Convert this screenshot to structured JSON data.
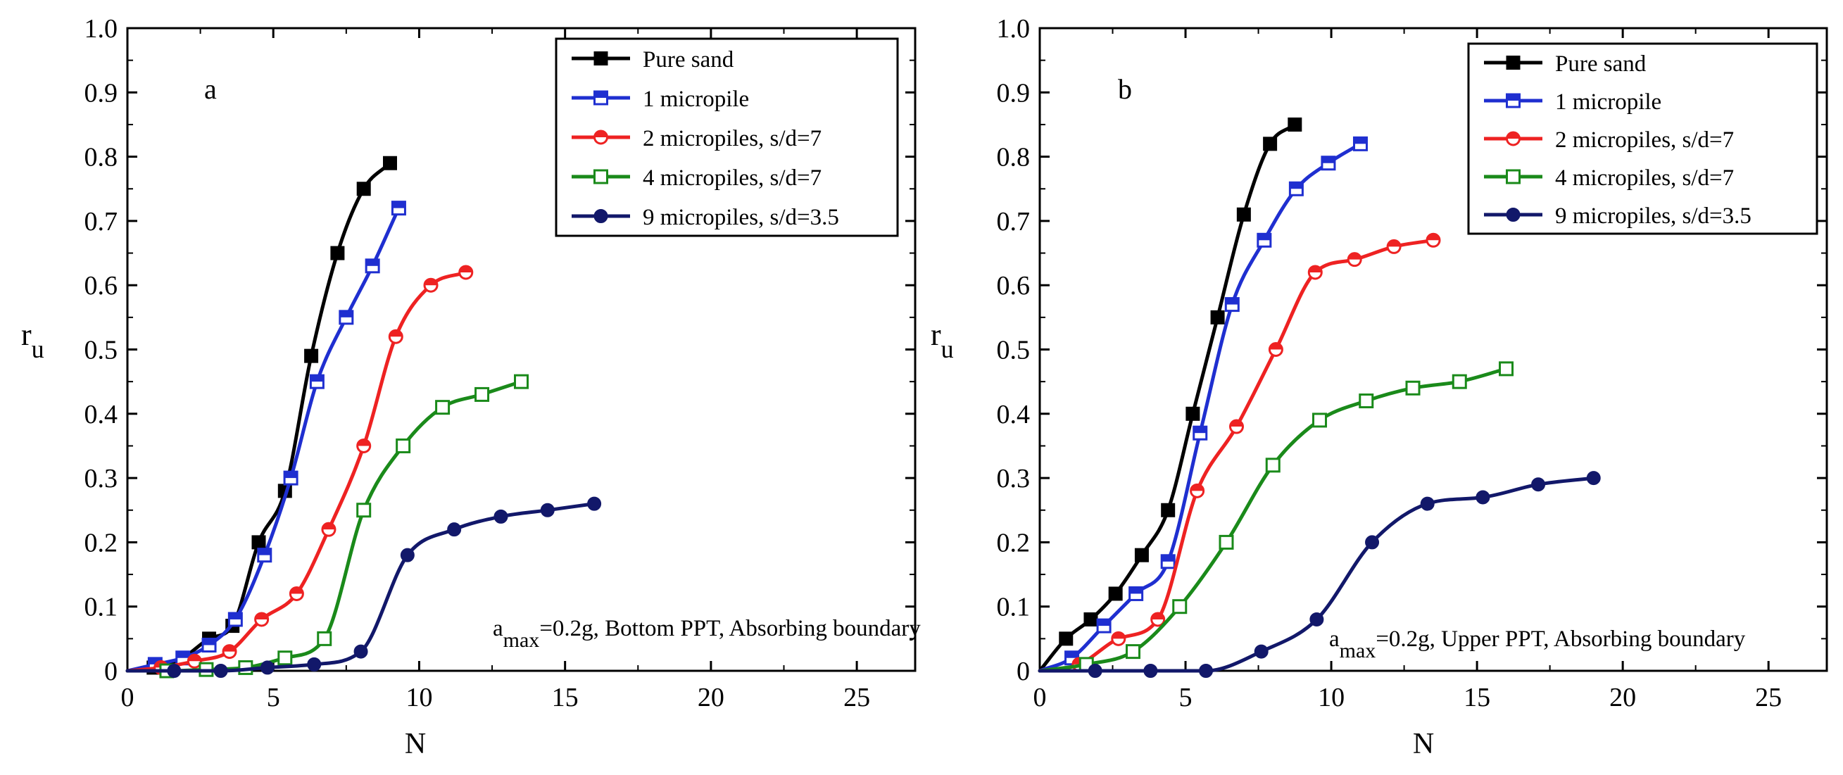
{
  "chart_data": [
    {
      "type": "line",
      "panel_label": "a",
      "xlabel": "N",
      "ylabel_main": "r",
      "ylabel_sub": "u",
      "xlim": [
        0,
        27
      ],
      "ylim": [
        0,
        1.0
      ],
      "xticks": [
        0,
        5,
        10,
        15,
        20,
        25
      ],
      "xtick_labels": [
        "0",
        "5",
        "10",
        "15",
        "20",
        "25"
      ],
      "yticks": [
        0,
        0.1,
        0.2,
        0.3,
        0.4,
        0.5,
        0.6,
        0.7,
        0.8,
        0.9,
        1.0
      ],
      "ytick_labels": [
        "0",
        "0.1",
        "0.2",
        "0.3",
        "0.4",
        "0.5",
        "0.6",
        "0.7",
        "0.8",
        "0.9",
        "1.0"
      ],
      "annotation": {
        "pre": "a",
        "sub": "max",
        "post": "=0.2g, Bottom PPT, Absorbing boundary"
      },
      "legend_position": "top-right",
      "series": [
        {
          "name": "Pure sand",
          "color": "#000000",
          "marker": "square-filled",
          "x": [
            0,
            0.9,
            1.9,
            2.8,
            3.6,
            4.5,
            5.4,
            6.3,
            7.2,
            8.1,
            9.0
          ],
          "y": [
            0,
            0.005,
            0.02,
            0.05,
            0.07,
            0.2,
            0.28,
            0.49,
            0.65,
            0.75,
            0.79
          ]
        },
        {
          "name": "1 micropile",
          "color": "#1f2fd0",
          "marker": "square-half",
          "x": [
            0,
            0.95,
            1.9,
            2.8,
            3.7,
            4.7,
            5.6,
            6.5,
            7.5,
            8.4,
            9.3
          ],
          "y": [
            0,
            0.01,
            0.02,
            0.04,
            0.08,
            0.18,
            0.3,
            0.45,
            0.55,
            0.63,
            0.72
          ]
        },
        {
          "name": "2 micropiles, s/d=7",
          "color": "#ee2222",
          "marker": "circle-half",
          "x": [
            0,
            1.15,
            2.3,
            3.5,
            4.6,
            5.8,
            6.9,
            8.1,
            9.2,
            10.4,
            11.6
          ],
          "y": [
            0,
            0.005,
            0.015,
            0.03,
            0.08,
            0.12,
            0.22,
            0.35,
            0.52,
            0.6,
            0.62
          ]
        },
        {
          "name": "4 micropiles, s/d=7",
          "color": "#1a8a1a",
          "marker": "square-open",
          "x": [
            0,
            1.35,
            2.7,
            4.05,
            5.4,
            6.75,
            8.1,
            9.45,
            10.8,
            12.15,
            13.5
          ],
          "y": [
            0,
            0,
            0.002,
            0.005,
            0.02,
            0.05,
            0.25,
            0.35,
            0.41,
            0.43,
            0.45
          ]
        },
        {
          "name": "9 micropiles, s/d=3.5",
          "color": "#12186a",
          "marker": "circle-filled",
          "x": [
            0,
            1.6,
            3.2,
            4.8,
            6.4,
            8.0,
            9.6,
            11.2,
            12.8,
            14.4,
            16.0
          ],
          "y": [
            0,
            0,
            0,
            0.005,
            0.01,
            0.03,
            0.18,
            0.22,
            0.24,
            0.25,
            0.26
          ]
        }
      ]
    },
    {
      "type": "line",
      "panel_label": "b",
      "xlabel": "N",
      "ylabel_main": "r",
      "ylabel_sub": "u",
      "xlim": [
        0,
        27
      ],
      "ylim": [
        0,
        1.0
      ],
      "xticks": [
        0,
        5,
        10,
        15,
        20,
        25
      ],
      "xtick_labels": [
        "0",
        "5",
        "10",
        "15",
        "20",
        "25"
      ],
      "yticks": [
        0,
        0.1,
        0.2,
        0.3,
        0.4,
        0.5,
        0.6,
        0.7,
        0.8,
        0.9,
        1.0
      ],
      "ytick_labels": [
        "0",
        "0.1",
        "0.2",
        "0.3",
        "0.4",
        "0.5",
        "0.6",
        "0.7",
        "0.8",
        "0.9",
        "1.0"
      ],
      "annotation": {
        "pre": "a",
        "sub": "max",
        "post": "=0.2g,  Upper PPT, Absorbing boundary"
      },
      "legend_position": "top-right",
      "series": [
        {
          "name": "Pure sand",
          "color": "#000000",
          "marker": "square-filled",
          "x": [
            0,
            0.9,
            1.75,
            2.6,
            3.5,
            4.4,
            5.25,
            6.1,
            7.0,
            7.9,
            8.75
          ],
          "y": [
            0,
            0.05,
            0.08,
            0.12,
            0.18,
            0.25,
            0.4,
            0.55,
            0.71,
            0.82,
            0.85
          ]
        },
        {
          "name": "1 micropile",
          "color": "#1f2fd0",
          "marker": "square-half",
          "x": [
            0,
            1.1,
            2.2,
            3.3,
            4.4,
            5.5,
            6.6,
            7.7,
            8.8,
            9.9,
            11.0
          ],
          "y": [
            0,
            0.02,
            0.07,
            0.12,
            0.17,
            0.37,
            0.57,
            0.67,
            0.75,
            0.79,
            0.82
          ]
        },
        {
          "name": "2 micropiles, s/d=7",
          "color": "#ee2222",
          "marker": "circle-half",
          "x": [
            0,
            1.35,
            2.7,
            4.05,
            5.4,
            6.75,
            8.1,
            9.45,
            10.8,
            12.15,
            13.5
          ],
          "y": [
            0,
            0.01,
            0.05,
            0.08,
            0.28,
            0.38,
            0.5,
            0.62,
            0.64,
            0.66,
            0.67
          ]
        },
        {
          "name": "4 micropiles, s/d=7",
          "color": "#1a8a1a",
          "marker": "square-open",
          "x": [
            0,
            1.6,
            3.2,
            4.8,
            6.4,
            8.0,
            9.6,
            11.2,
            12.8,
            14.4,
            16.0
          ],
          "y": [
            0,
            0.01,
            0.03,
            0.1,
            0.2,
            0.32,
            0.39,
            0.42,
            0.44,
            0.45,
            0.47
          ]
        },
        {
          "name": "9 micropiles, s/d=3.5",
          "color": "#12186a",
          "marker": "circle-filled",
          "x": [
            0,
            1.9,
            3.8,
            5.7,
            7.6,
            9.5,
            11.4,
            13.3,
            15.2,
            17.1,
            19.0
          ],
          "y": [
            0,
            0,
            0,
            0,
            0.03,
            0.08,
            0.2,
            0.26,
            0.27,
            0.29,
            0.3
          ]
        }
      ]
    }
  ]
}
